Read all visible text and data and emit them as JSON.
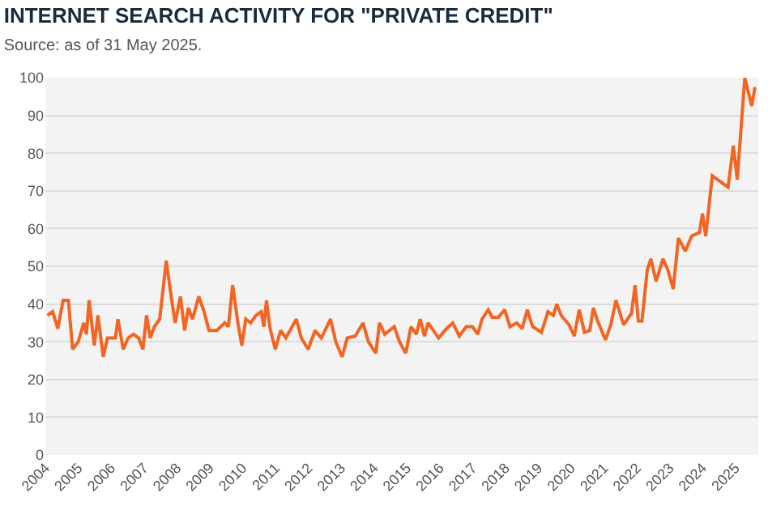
{
  "chart_data": {
    "type": "line",
    "title": "INTERNET SEARCH ACTIVITY FOR \"PRIVATE CREDIT\"",
    "annotations": [
      "Source: as of 31 May 2025."
    ],
    "x": [
      2004.06,
      2004.22,
      2004.38,
      2004.54,
      2004.7,
      2004.83,
      2005.0,
      2005.17,
      2005.25,
      2005.33,
      2005.49,
      2005.6,
      2005.76,
      2005.89,
      2006.13,
      2006.21,
      2006.37,
      2006.52,
      2006.68,
      2006.84,
      2006.97,
      2007.08,
      2007.19,
      2007.32,
      2007.48,
      2007.68,
      2007.83,
      2007.95,
      2008.11,
      2008.24,
      2008.35,
      2008.48,
      2008.67,
      2008.83,
      2008.98,
      2009.22,
      2009.46,
      2009.57,
      2009.7,
      2009.86,
      2009.98,
      2010.1,
      2010.25,
      2010.41,
      2010.57,
      2010.65,
      2010.73,
      2010.84,
      2011.0,
      2011.16,
      2011.32,
      2011.64,
      2011.79,
      2012.0,
      2012.21,
      2012.4,
      2012.68,
      2012.84,
      2013.03,
      2013.19,
      2013.43,
      2013.67,
      2013.83,
      2014.06,
      2014.17,
      2014.33,
      2014.62,
      2014.78,
      2014.97,
      2015.13,
      2015.29,
      2015.41,
      2015.54,
      2015.65,
      2015.97,
      2016.21,
      2016.4,
      2016.6,
      2016.81,
      2017.0,
      2017.16,
      2017.29,
      2017.48,
      2017.6,
      2017.79,
      2017.98,
      2018.14,
      2018.35,
      2018.51,
      2018.67,
      2018.83,
      2019.1,
      2019.3,
      2019.46,
      2019.57,
      2019.7,
      2019.94,
      2020.1,
      2020.25,
      2020.41,
      2020.57,
      2020.68,
      2020.81,
      2021.05,
      2021.21,
      2021.37,
      2021.6,
      2021.84,
      2021.95,
      2022.05,
      2022.16,
      2022.32,
      2022.43,
      2022.59,
      2022.8,
      2022.95,
      2023.11,
      2023.27,
      2023.48,
      2023.67,
      2023.91,
      2024.0,
      2024.1,
      2024.3,
      2024.46,
      2024.78,
      2024.94,
      2025.06,
      2025.29,
      2025.5,
      2025.6
    ],
    "series": [
      {
        "color": "#f26522",
        "values": [
          37,
          38,
          33.5,
          41,
          41,
          28,
          30,
          35,
          32,
          41,
          29,
          37,
          26,
          31,
          31,
          36,
          28,
          31,
          32,
          31,
          28,
          37,
          31,
          34,
          36,
          51.5,
          42,
          35,
          42,
          33,
          39,
          36,
          42,
          38,
          33,
          33,
          35,
          34,
          45,
          35,
          29,
          36,
          35,
          37,
          38,
          34,
          41,
          33.5,
          28,
          33,
          31,
          36,
          31,
          28,
          33,
          31,
          36,
          30,
          26,
          31,
          31.5,
          35,
          30,
          27,
          35,
          32,
          34,
          30,
          27,
          34,
          32,
          36,
          31.5,
          35,
          31,
          33.5,
          35,
          31.5,
          34,
          34,
          32,
          36,
          38.5,
          36.5,
          36.5,
          38.5,
          34,
          35,
          33.5,
          38.5,
          34,
          32.5,
          38,
          37,
          40,
          37,
          34.5,
          31.5,
          38.5,
          32.5,
          33,
          39,
          35.5,
          30.5,
          34.5,
          41,
          34.5,
          37.5,
          45,
          35.5,
          35.5,
          49,
          52,
          46,
          52,
          49,
          44,
          57.5,
          54,
          58,
          59,
          64,
          58,
          74,
          73,
          71,
          82,
          73,
          100,
          92.5,
          97.5
        ]
      }
    ],
    "xlim": [
      2004,
      2025.7
    ],
    "xticks": [
      {
        "value": 2004,
        "label": "2004"
      },
      {
        "value": 2005,
        "label": "2005"
      },
      {
        "value": 2006,
        "label": "2006"
      },
      {
        "value": 2007,
        "label": "2007"
      },
      {
        "value": 2008,
        "label": "2008"
      },
      {
        "value": 2009,
        "label": "2009"
      },
      {
        "value": 2010,
        "label": "2010"
      },
      {
        "value": 2011,
        "label": "2011"
      },
      {
        "value": 2012,
        "label": "2012"
      },
      {
        "value": 2013,
        "label": "2013"
      },
      {
        "value": 2014,
        "label": "2014"
      },
      {
        "value": 2015,
        "label": "2015"
      },
      {
        "value": 2016,
        "label": "2016"
      },
      {
        "value": 2017,
        "label": "2017"
      },
      {
        "value": 2018,
        "label": "2018"
      },
      {
        "value": 2019,
        "label": "2019"
      },
      {
        "value": 2020,
        "label": "2020"
      },
      {
        "value": 2021,
        "label": "2021"
      },
      {
        "value": 2022,
        "label": "2022"
      },
      {
        "value": 2023,
        "label": "2023"
      },
      {
        "value": 2024,
        "label": "2024"
      },
      {
        "value": 2025,
        "label": "2025"
      }
    ],
    "ylim": [
      0,
      100
    ],
    "yticks": [
      0,
      10,
      20,
      30,
      40,
      50,
      60,
      70,
      80,
      90,
      100
    ],
    "grid": "y",
    "marker": "none",
    "line_style": "solid"
  }
}
